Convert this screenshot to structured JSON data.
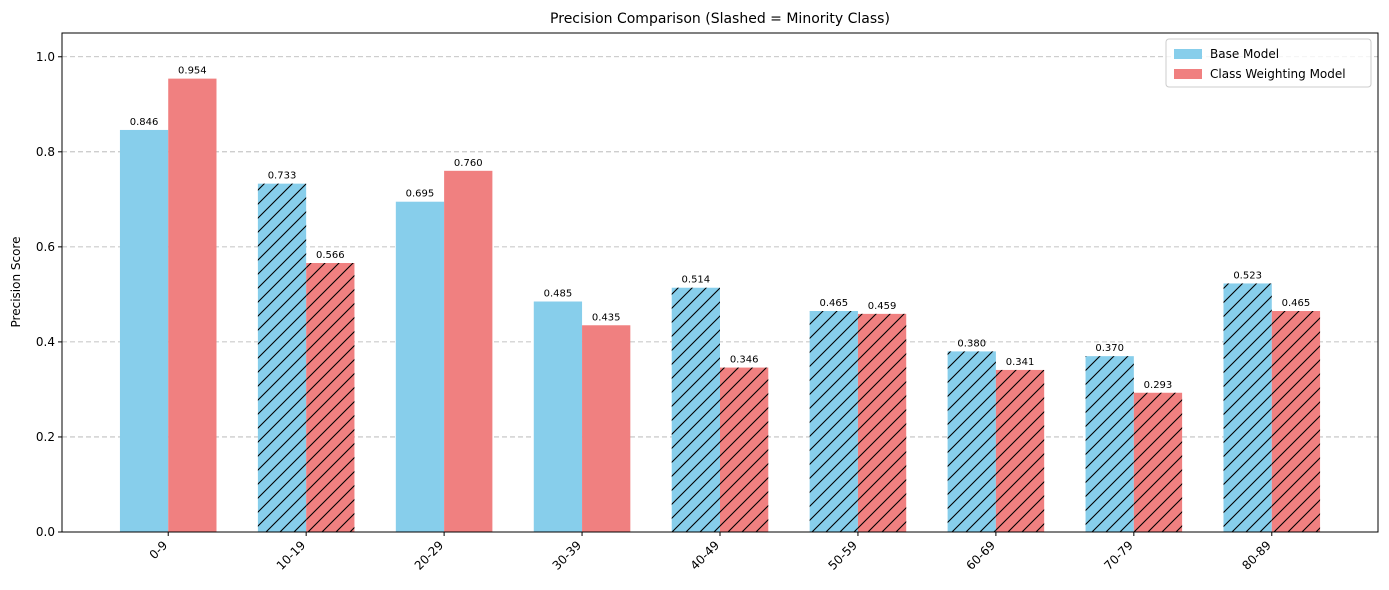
{
  "chart_data": {
    "type": "bar",
    "title": "Precision Comparison (Slashed = Minority Class)",
    "ylabel": "Precision Score",
    "xlabel": "",
    "ylim": [
      0,
      1.05
    ],
    "yticks": [
      "0.0",
      "0.2",
      "0.4",
      "0.6",
      "0.8",
      "1.0"
    ],
    "ytick_values": [
      0,
      0.2,
      0.4,
      0.6,
      0.8,
      1.0
    ],
    "grid": "y-dashed",
    "legend_position": "top-right",
    "categories": [
      "0-9",
      "10-19",
      "20-29",
      "30-39",
      "40-49",
      "50-59",
      "60-69",
      "70-79",
      "80-89"
    ],
    "minority": [
      false,
      true,
      false,
      false,
      true,
      true,
      true,
      true,
      true
    ],
    "series": [
      {
        "name": "Base Model",
        "color": "#87ceeb",
        "values": [
          0.846,
          0.733,
          0.695,
          0.485,
          0.514,
          0.465,
          0.38,
          0.37,
          0.523
        ],
        "labels": [
          "0.846",
          "0.733",
          "0.695",
          "0.485",
          "0.514",
          "0.465",
          "0.380",
          "0.370",
          "0.523"
        ]
      },
      {
        "name": "Class Weighting Model",
        "color": "#f08080",
        "values": [
          0.954,
          0.566,
          0.76,
          0.435,
          0.346,
          0.459,
          0.341,
          0.293,
          0.465
        ],
        "labels": [
          "0.954",
          "0.566",
          "0.760",
          "0.435",
          "0.346",
          "0.459",
          "0.341",
          "0.293",
          "0.465"
        ]
      }
    ]
  }
}
